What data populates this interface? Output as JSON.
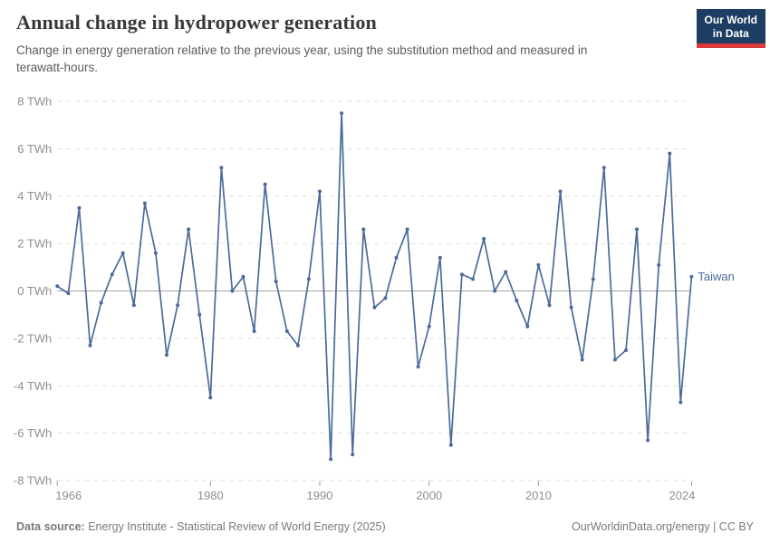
{
  "header": {
    "title": "Annual change in hydropower generation",
    "subtitle": "Change in energy generation relative to the previous year, using the substitution method and measured in terawatt-hours.",
    "logo_line1": "Our World",
    "logo_line2": "in Data",
    "logo_bg_color": "#1d3d63",
    "logo_accent_color": "#d93b3b"
  },
  "footer": {
    "source_label": "Data source:",
    "source_text": "Energy Institute - Statistical Review of World Energy (2025)",
    "credit": "OurWorldinData.org/energy | CC BY"
  },
  "chart_data": {
    "type": "line",
    "title": "Annual change in hydropower generation",
    "subtitle": "Change in energy generation relative to the previous year, using the substitution method and measured in terawatt-hours.",
    "xlabel": "",
    "ylabel": "TWh",
    "xlim": [
      1966,
      2024
    ],
    "ylim": [
      -8,
      8
    ],
    "grid": "horizontal dashed gridlines, solid zero line",
    "legend_position": "end-of-line label",
    "line_color": "#4C6A9C",
    "grid_color": "#dcdcdc",
    "zero_line_color": "#a6a6a6",
    "tick_text_color": "#8f8f8f",
    "yticks": [
      {
        "value": 8,
        "label": "8 TWh"
      },
      {
        "value": 6,
        "label": "6 TWh"
      },
      {
        "value": 4,
        "label": "4 TWh"
      },
      {
        "value": 2,
        "label": "2 TWh"
      },
      {
        "value": 0,
        "label": "0 TWh"
      },
      {
        "value": -2,
        "label": "-2 TWh"
      },
      {
        "value": -4,
        "label": "-4 TWh"
      },
      {
        "value": -6,
        "label": "-6 TWh"
      },
      {
        "value": -8,
        "label": "-8 TWh"
      }
    ],
    "xticks": [
      1966,
      1980,
      1990,
      2000,
      2010,
      2024
    ],
    "series": [
      {
        "name": "Taiwan",
        "color": "#4C6A9C",
        "x": [
          1966,
          1967,
          1968,
          1969,
          1970,
          1971,
          1972,
          1973,
          1974,
          1975,
          1976,
          1977,
          1978,
          1979,
          1980,
          1981,
          1982,
          1983,
          1984,
          1985,
          1986,
          1987,
          1988,
          1989,
          1990,
          1991,
          1992,
          1993,
          1994,
          1995,
          1996,
          1997,
          1998,
          1999,
          2000,
          2001,
          2002,
          2003,
          2004,
          2005,
          2006,
          2007,
          2008,
          2009,
          2010,
          2011,
          2012,
          2013,
          2014,
          2015,
          2016,
          2017,
          2018,
          2019,
          2020,
          2021,
          2022,
          2023,
          2024
        ],
        "values": [
          0.2,
          -0.1,
          3.5,
          -2.3,
          -0.5,
          0.7,
          1.6,
          -0.6,
          3.7,
          1.6,
          -2.7,
          -0.6,
          2.6,
          -1.0,
          -4.5,
          5.2,
          0.0,
          0.6,
          -1.7,
          4.5,
          0.4,
          -1.7,
          -2.3,
          0.5,
          4.2,
          -7.1,
          7.5,
          -6.9,
          2.6,
          -0.7,
          -0.3,
          1.4,
          2.6,
          -3.2,
          -1.5,
          1.4,
          -6.5,
          0.7,
          0.5,
          2.2,
          0.0,
          0.8,
          -0.4,
          -1.5,
          1.1,
          -0.6,
          4.2,
          -0.7,
          -2.9,
          0.5,
          5.2,
          -2.9,
          -2.5,
          2.6,
          -6.3,
          1.1,
          5.8,
          -4.7,
          0.6
        ]
      }
    ]
  }
}
